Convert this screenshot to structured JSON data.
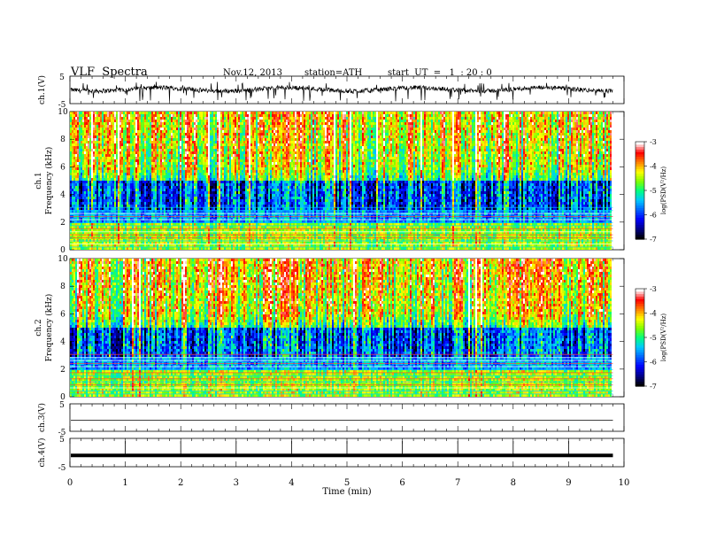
{
  "header": {
    "title": "VLF  Spectra",
    "date": "Nov.12, 2013",
    "station": "station=ATH",
    "start": "start  UT  =   1  : 20 : 0"
  },
  "colors": {
    "colormap": [
      "#000000",
      "#00008b",
      "#0000ff",
      "#0064ff",
      "#00c8ff",
      "#00ff80",
      "#80ff00",
      "#ffff00",
      "#ff8000",
      "#ff0000",
      "#ffffff"
    ]
  },
  "chart_data": [
    {
      "type": "line",
      "id": "ch1v",
      "ylabel": "ch.1(V)",
      "ylim": [
        -5,
        5
      ],
      "yticks": [
        "5",
        "-5"
      ],
      "xlim": [
        0,
        10
      ],
      "series": [
        {
          "values": "noisy trace around 0 V (approx 0.2 V) with frequent negative spikes down to about -4 V"
        }
      ]
    },
    {
      "type": "heatmap",
      "id": "ch1spec",
      "ylabel": "ch.1",
      "ylabel2": "Frequency  (kHz)",
      "ylim": [
        0,
        10
      ],
      "yticks": [
        "0",
        "2",
        "4",
        "6",
        "8",
        "10"
      ],
      "xlim": [
        0,
        9.8
      ],
      "colorbar": {
        "label": "log(PSD(V²/Hz)",
        "range": [
          -7,
          -3
        ],
        "ticks": [
          "-7",
          "-6",
          "-5",
          "-4",
          "-3"
        ]
      }
    },
    {
      "type": "heatmap",
      "id": "ch2spec",
      "ylabel": "ch.2",
      "ylabel2": "Frequency  (kHz)",
      "ylim": [
        0,
        10
      ],
      "yticks": [
        "0",
        "2",
        "4",
        "6",
        "8",
        "10"
      ],
      "xlim": [
        0,
        9.8
      ],
      "colorbar": {
        "label": "log(PSD(V²/Hz)",
        "range": [
          -7,
          -3
        ],
        "ticks": [
          "-7",
          "-6",
          "-5",
          "-4",
          "-3"
        ]
      }
    },
    {
      "type": "line",
      "id": "ch3v",
      "ylabel": "ch.3(V)",
      "ylim": [
        -5,
        5
      ],
      "yticks": [
        "5",
        "-5"
      ],
      "series": [
        {
          "values": "flat near -1 V"
        }
      ]
    },
    {
      "type": "line",
      "id": "ch4v",
      "ylabel": "ch.4(V)",
      "ylim": [
        -5,
        5
      ],
      "yticks": [
        "5",
        "-5"
      ],
      "series": [
        {
          "values": "flat thick line near -1 V"
        }
      ]
    },
    {
      "type": "axis",
      "id": "time-axis",
      "xlabel": "Time  (min)",
      "xlim": [
        0,
        10
      ],
      "xticks": [
        "0",
        "1",
        "2",
        "3",
        "4",
        "5",
        "6",
        "7",
        "8",
        "9",
        "10"
      ]
    }
  ]
}
